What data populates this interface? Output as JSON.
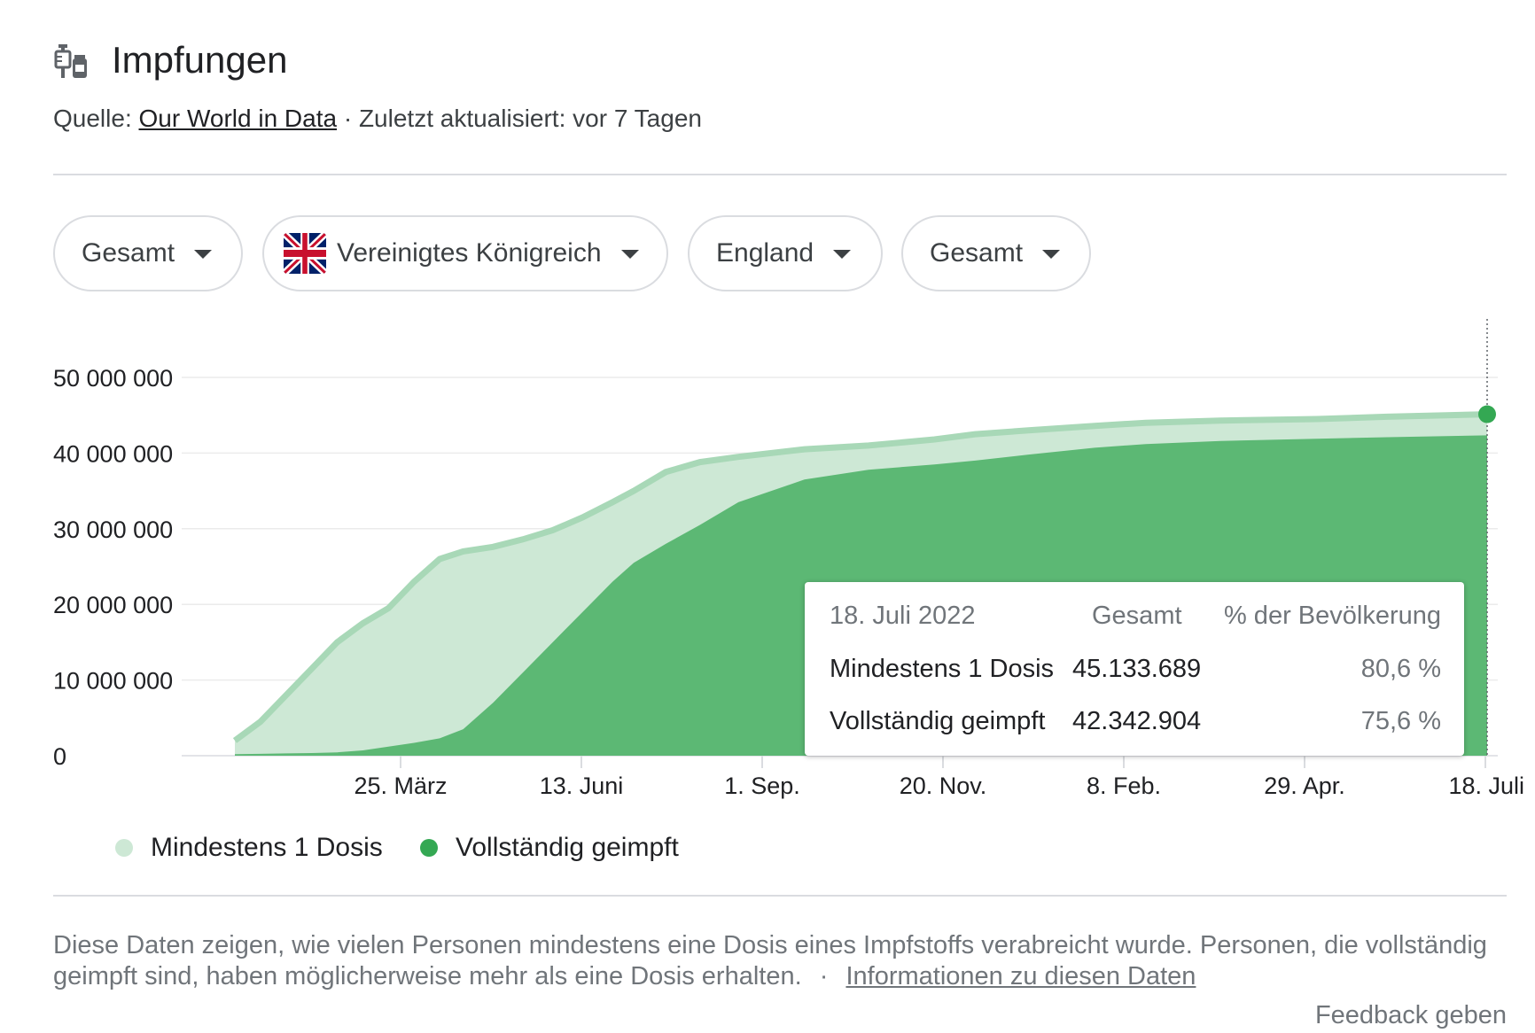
{
  "header": {
    "title": "Impfungen",
    "icon": "syringe-vial-icon",
    "source_prefix": "Quelle:",
    "source_link": "Our World in Data",
    "updated": "· Zuletzt aktualisiert: vor 7 Tagen"
  },
  "filters": [
    {
      "label": "Gesamt"
    },
    {
      "label": "Vereinigtes Königreich",
      "icon": "uk-flag-icon"
    },
    {
      "label": "England"
    },
    {
      "label": "Gesamt"
    }
  ],
  "colors": {
    "light_area": "#cde8d5",
    "light_line": "#a8d8b7",
    "dark_area": "#5cb874",
    "marker": "#34a853"
  },
  "chart_data": {
    "type": "area",
    "x_ticks": [
      "25. März",
      "13. Juni",
      "1. Sep.",
      "20. Nov.",
      "8. Feb.",
      "29. Apr.",
      "18. Juli"
    ],
    "y_ticks": [
      "0",
      "10 000 000",
      "20 000 000",
      "30 000 000",
      "40 000 000",
      "50 000 000"
    ],
    "ylim": [
      0,
      50000000
    ],
    "x": [
      "2020-12-08",
      "2020-12-20",
      "2021-01-01",
      "2021-01-13",
      "2021-01-25",
      "2021-02-06",
      "2021-02-18",
      "2021-03-02",
      "2021-03-14",
      "2021-03-25",
      "2021-04-08",
      "2021-04-22",
      "2021-05-06",
      "2021-05-20",
      "2021-06-03",
      "2021-06-13",
      "2021-06-28",
      "2021-07-14",
      "2021-08-01",
      "2021-09-01",
      "2021-10-01",
      "2021-11-01",
      "2021-11-20",
      "2021-12-15",
      "2022-01-15",
      "2022-02-08",
      "2022-03-15",
      "2022-04-29",
      "2022-06-01",
      "2022-07-18"
    ],
    "series": [
      {
        "name": "Mindestens 1 Dosis",
        "values": [
          2000000,
          4500000,
          8000000,
          11500000,
          15000000,
          17500000,
          19500000,
          23000000,
          26000000,
          27000000,
          27600000,
          28600000,
          29800000,
          31500000,
          33500000,
          35000000,
          37500000,
          38800000,
          39500000,
          40500000,
          41000000,
          41800000,
          42500000,
          43000000,
          43600000,
          44000000,
          44300000,
          44500000,
          44800000,
          45133689
        ]
      },
      {
        "name": "Vollständig geimpft",
        "values": [
          200000,
          250000,
          300000,
          350000,
          450000,
          700000,
          1200000,
          1700000,
          2300000,
          3500000,
          7000000,
          11000000,
          15000000,
          19000000,
          23000000,
          25500000,
          28000000,
          30500000,
          33500000,
          36500000,
          37800000,
          38500000,
          39000000,
          39800000,
          40700000,
          41200000,
          41600000,
          41900000,
          42100000,
          42342904
        ]
      }
    ]
  },
  "tooltip": {
    "date": "18. Juli 2022",
    "col_total": "Gesamt",
    "col_pct": "% der Bevölkerung",
    "rows": [
      {
        "label": "Mindestens 1 Dosis",
        "total": "45.133.689",
        "pct": "80,6 %"
      },
      {
        "label": "Vollständig geimpft",
        "total": "42.342.904",
        "pct": "75,6 %"
      }
    ]
  },
  "legend": [
    {
      "label": "Mindestens 1 Dosis",
      "color": "#cde8d5"
    },
    {
      "label": "Vollständig geimpft",
      "color": "#34a853"
    }
  ],
  "footer": {
    "description": "Diese Daten zeigen, wie vielen Personen mindestens eine Dosis eines Impfstoffs verabreicht wurde. Personen, die vollständig geimpft sind, haben möglicherweise mehr als eine Dosis erhalten.",
    "separator": "·",
    "info_link": "Informationen zu diesen Daten",
    "feedback": "Feedback geben"
  }
}
